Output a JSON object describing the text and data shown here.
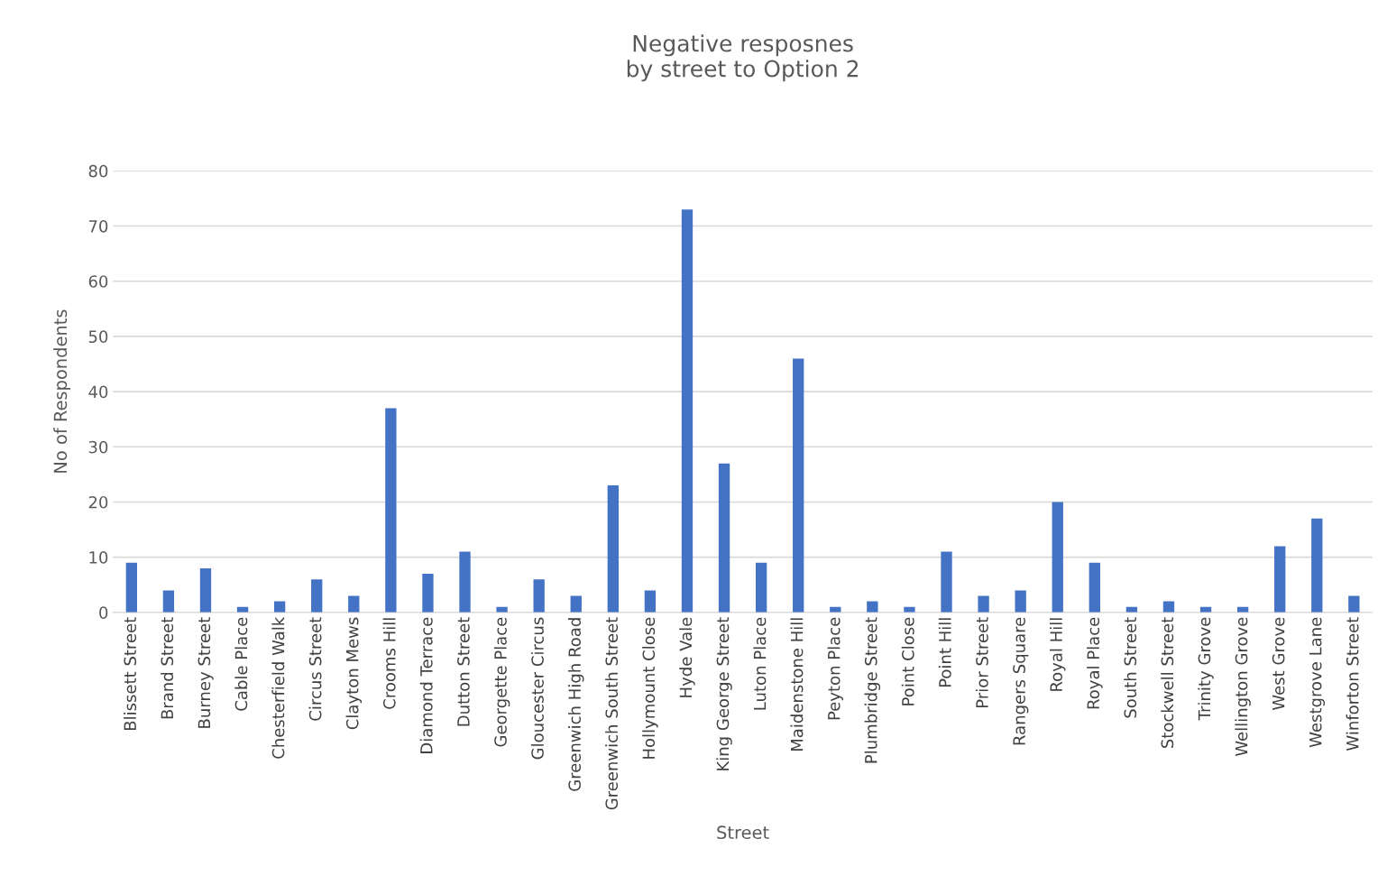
{
  "chart_data": {
    "type": "bar",
    "title": "Negative resposnes\nby street to Option 2",
    "xlabel": "Street",
    "ylabel": "No of Respondents",
    "categories": [
      "Blissett Street",
      "Brand Street",
      "Burney Street",
      "Cable Place",
      "Chesterfield Walk",
      "Circus Street",
      "Clayton Mews",
      "Crooms Hill",
      "Diamond Terrace",
      "Dutton Street",
      "Georgette Place",
      "Gloucester Circus",
      "Greenwich High Road",
      "Greenwich South Street",
      "Hollymount Close",
      "Hyde Vale",
      "King George Street",
      "Luton Place",
      "Maidenstone Hill",
      "Peyton Place",
      "Plumbridge Street",
      "Point Close",
      "Point Hill",
      "Prior Street",
      "Rangers Square",
      "Royal Hill",
      "Royal Place",
      "South Street",
      "Stockwell Street",
      "Trinity Grove",
      "Wellington Grove",
      "West Grove",
      "Westgrove Lane",
      "Winforton Street"
    ],
    "values": [
      9,
      4,
      8,
      1,
      2,
      6,
      3,
      37,
      7,
      11,
      1,
      6,
      3,
      23,
      4,
      73,
      27,
      9,
      46,
      1,
      2,
      1,
      11,
      3,
      4,
      20,
      9,
      1,
      2,
      1,
      1,
      12,
      17,
      3
    ],
    "color": "#4472c4",
    "ylim": [
      0,
      80
    ],
    "yticks": [
      0,
      10,
      20,
      30,
      40,
      50,
      60,
      70,
      80
    ],
    "grid": "y",
    "legend": false
  }
}
